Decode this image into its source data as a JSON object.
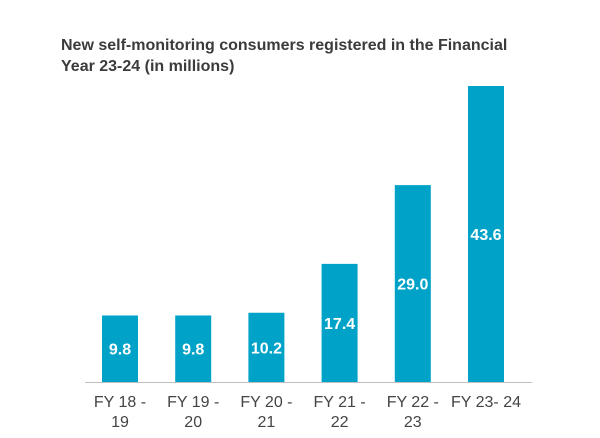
{
  "chart_data": {
    "type": "bar",
    "title": "New self-monitoring consumers registered in the Financial Year 23-24 (in millions)",
    "categories": [
      [
        "FY 18 -",
        "19"
      ],
      [
        "FY 19 -",
        "20"
      ],
      [
        "FY 20 -",
        "21"
      ],
      [
        "FY 21 -",
        "22"
      ],
      [
        "FY 22 -",
        "23"
      ],
      [
        "FY 23- 24"
      ]
    ],
    "values": [
      9.8,
      9.8,
      10.2,
      17.4,
      29.0,
      43.6
    ],
    "value_labels": [
      "9.8",
      "9.8",
      "10.2",
      "17.4",
      "29.0",
      "43.6"
    ],
    "xlabel": "",
    "ylabel": "",
    "ylim": [
      0,
      45
    ],
    "grid": false,
    "bar_color": "#00a3c7",
    "axis_color": "#bfbfbf"
  }
}
